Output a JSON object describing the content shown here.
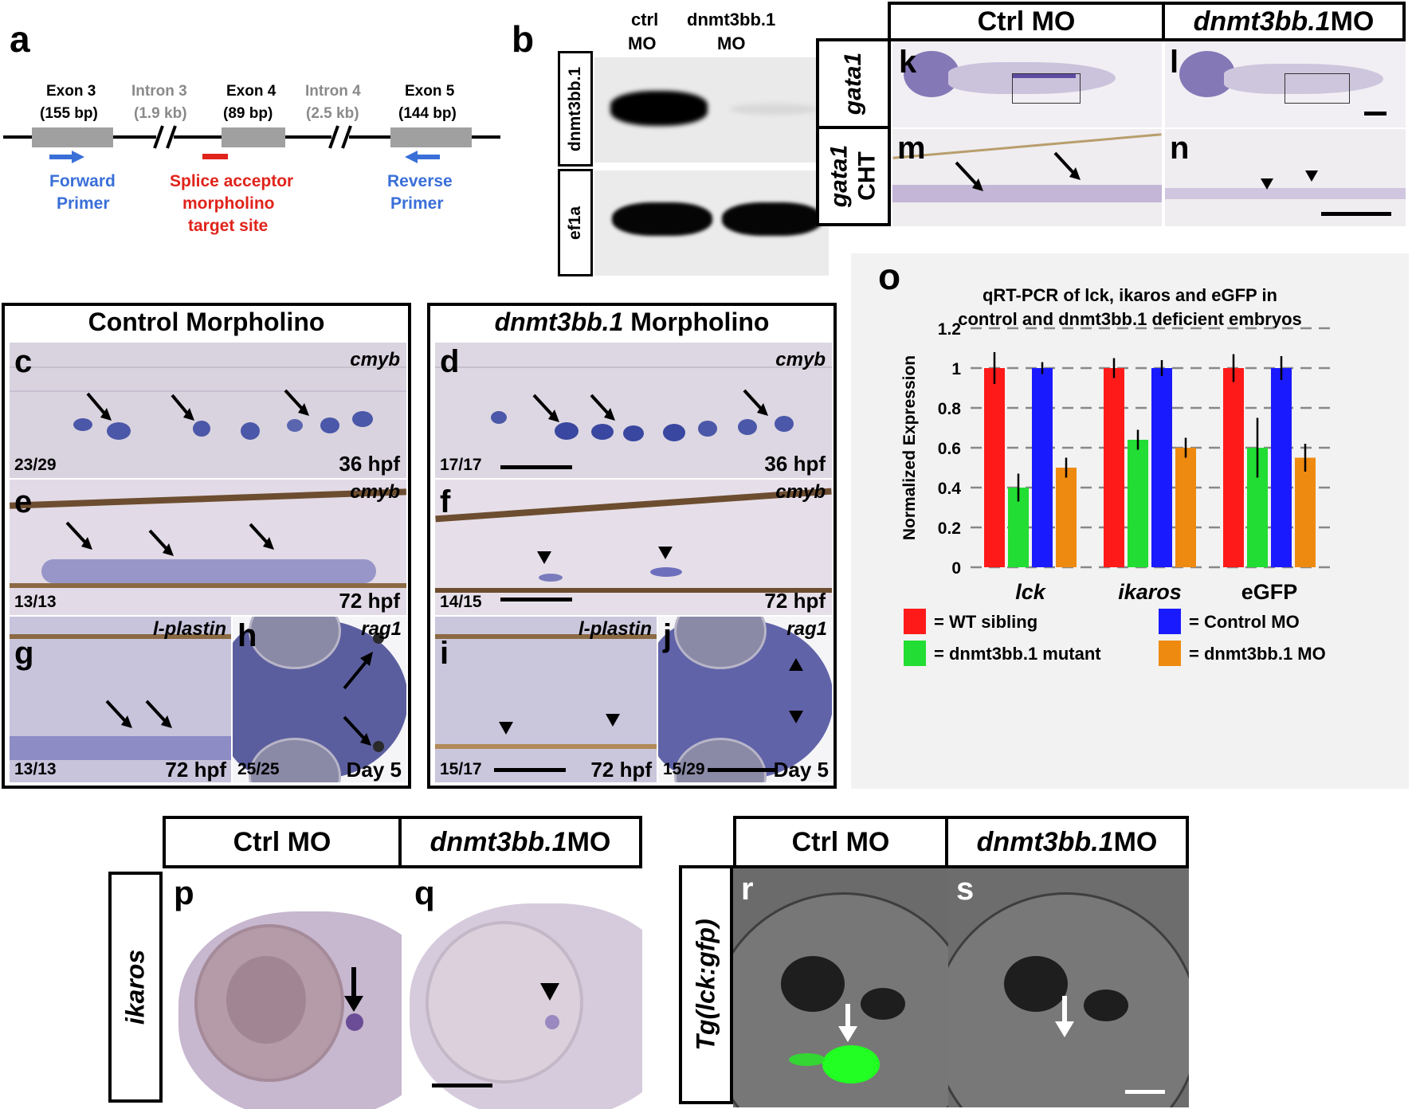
{
  "panel_a": {
    "letter": "a",
    "exons": [
      {
        "name": "Exon 3",
        "size": "(155 bp)"
      },
      {
        "name": "Exon 4",
        "size": "(89 bp)"
      },
      {
        "name": "Exon 5",
        "size": "(144 bp)"
      }
    ],
    "introns": [
      {
        "name": "Intron 3",
        "size": "(1.9 kb)"
      },
      {
        "name": "Intron 4",
        "size": "(2.5 kb)"
      }
    ],
    "forward_line1": "Forward",
    "forward_line2": "Primer",
    "reverse_line1": "Reverse",
    "reverse_line2": "Primer",
    "splice_line1": "Splice acceptor",
    "splice_line2": "morpholino",
    "splice_line3": "target site",
    "colors": {
      "primer": "#3a6fd8",
      "splice": "#e0231b",
      "intron_text": "#8a8a8a",
      "exon": "#a0a0a0"
    }
  },
  "panel_b": {
    "letter": "b",
    "col1_line1": "ctrl",
    "col1_line2": "MO",
    "col2_line1": "dnmt3bb.1",
    "col2_line2": "MO",
    "row1": "dnmt3bb.1",
    "row2": "ef1a"
  },
  "panel_kn": {
    "col1": "Ctrl MO",
    "col2_gene": "dnmt3bb.1",
    "col2_suffix": " MO",
    "row1": "gata1",
    "row2_gene": "gata1",
    "row2_suffix": "CHT",
    "letters": [
      "k",
      "l",
      "m",
      "n"
    ]
  },
  "panel_cj": {
    "left_title": "Control Morpholino",
    "right_title_gene": "dnmt3bb.1",
    "right_title_suffix": " Morpholino",
    "c": {
      "letter": "c",
      "gene": "cmyb",
      "ratio": "23/29",
      "stage": "36 hpf"
    },
    "d": {
      "letter": "d",
      "gene": "cmyb",
      "ratio": "17/17",
      "stage": "36 hpf"
    },
    "e": {
      "letter": "e",
      "gene": "cmyb",
      "ratio": "13/13",
      "stage": "72 hpf"
    },
    "f": {
      "letter": "f",
      "gene": "cmyb",
      "ratio": "14/15",
      "stage": "72 hpf"
    },
    "g": {
      "letter": "g",
      "gene": "l-plastin",
      "ratio": "13/13",
      "stage": "72 hpf"
    },
    "h": {
      "letter": "h",
      "gene": "rag1",
      "ratio": "25/25",
      "stage": "Day 5"
    },
    "i": {
      "letter": "i",
      "gene": "l-plastin",
      "ratio": "15/17",
      "stage": "72 hpf"
    },
    "j": {
      "letter": "j",
      "gene": "rag1",
      "ratio": "15/29",
      "stage": "Day 5"
    }
  },
  "panel_o": {
    "letter": "o",
    "title_line1": "qRT-PCR of lck, ikaros and eGFP in",
    "title_line2": "control and dnmt3bb.1 deficient embryos"
  },
  "chart_data": {
    "type": "bar",
    "categories": [
      "lck",
      "ikaros",
      "eGFP"
    ],
    "ylabel": "Normalized Expression",
    "ylim": [
      0,
      1.2
    ],
    "yticks": [
      "0",
      "0.2",
      "0.4",
      "0.6",
      "0.8",
      "1",
      "1.2"
    ],
    "grid": "dashed horizontal",
    "legend_position": "bottom",
    "series": [
      {
        "name": "= WT sibling",
        "color": "#ff1a1a",
        "values": [
          1.0,
          1.0,
          1.0
        ],
        "errors": [
          0.08,
          0.05,
          0.07
        ]
      },
      {
        "name": "= dnmt3bb.1 mutant",
        "color": "#22dd33",
        "values": [
          0.4,
          0.64,
          0.6
        ],
        "errors": [
          0.07,
          0.05,
          0.15
        ]
      },
      {
        "name": "= Control MO",
        "color": "#1a1aff",
        "values": [
          1.0,
          1.0,
          1.0
        ],
        "errors": [
          0.03,
          0.04,
          0.06
        ]
      },
      {
        "name": "= dnmt3bb.1 MO",
        "color": "#ef8a10",
        "values": [
          0.5,
          0.6,
          0.55
        ],
        "errors": [
          0.05,
          0.05,
          0.07
        ]
      }
    ]
  },
  "panel_pq": {
    "col1": "Ctrl MO",
    "col2_gene": "dnmt3bb.1",
    "col2_suffix": " MO",
    "row": "ikaros",
    "letters": [
      "p",
      "q"
    ]
  },
  "panel_rs": {
    "col1": "Ctrl MO",
    "col2_gene": "dnmt3bb.1",
    "col2_suffix": " MO",
    "row": "Tg(lck:gfp)",
    "letters": [
      "r",
      "s"
    ],
    "gfp_color": "#22ff22"
  }
}
